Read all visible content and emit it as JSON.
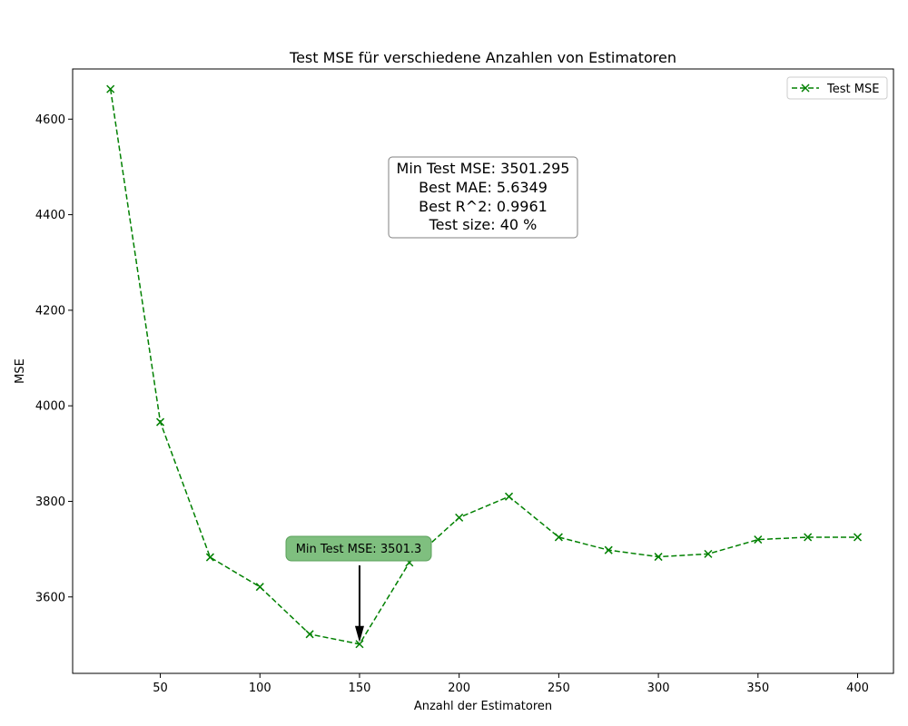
{
  "chart_data": {
    "type": "line",
    "title": "Test MSE für verschiedene Anzahlen von Estimatoren",
    "xlabel": "Anzahl der Estimatoren",
    "ylabel": "MSE",
    "xlim": [
      6,
      418
    ],
    "ylim": [
      3440,
      4705
    ],
    "xticks": [
      50,
      100,
      150,
      200,
      250,
      300,
      350,
      400
    ],
    "yticks": [
      3600,
      3800,
      4000,
      4200,
      4400,
      4600
    ],
    "grid": false,
    "legend_position": "top-right",
    "series": [
      {
        "name": "Test MSE",
        "color": "#008000",
        "line_style": "dashed",
        "marker": "x",
        "x": [
          25,
          50,
          75,
          100,
          125,
          150,
          175,
          200,
          225,
          250,
          275,
          300,
          325,
          350,
          375,
          400
        ],
        "y": [
          4663,
          3966,
          3683,
          3621,
          3522,
          3501.3,
          3672,
          3766,
          3810,
          3725,
          3698,
          3684,
          3690,
          3720,
          3725,
          3725
        ]
      }
    ],
    "stats_box": [
      "Min Test MSE: 3501.295",
      "Best MAE: 5.6349",
      "Best R^2: 0.9961",
      "Test size: 40 %"
    ],
    "annotation": {
      "text": "Min Test MSE: 3501.3",
      "x": 150,
      "y": 3501.3,
      "box_color": "#7fbf7f"
    }
  }
}
